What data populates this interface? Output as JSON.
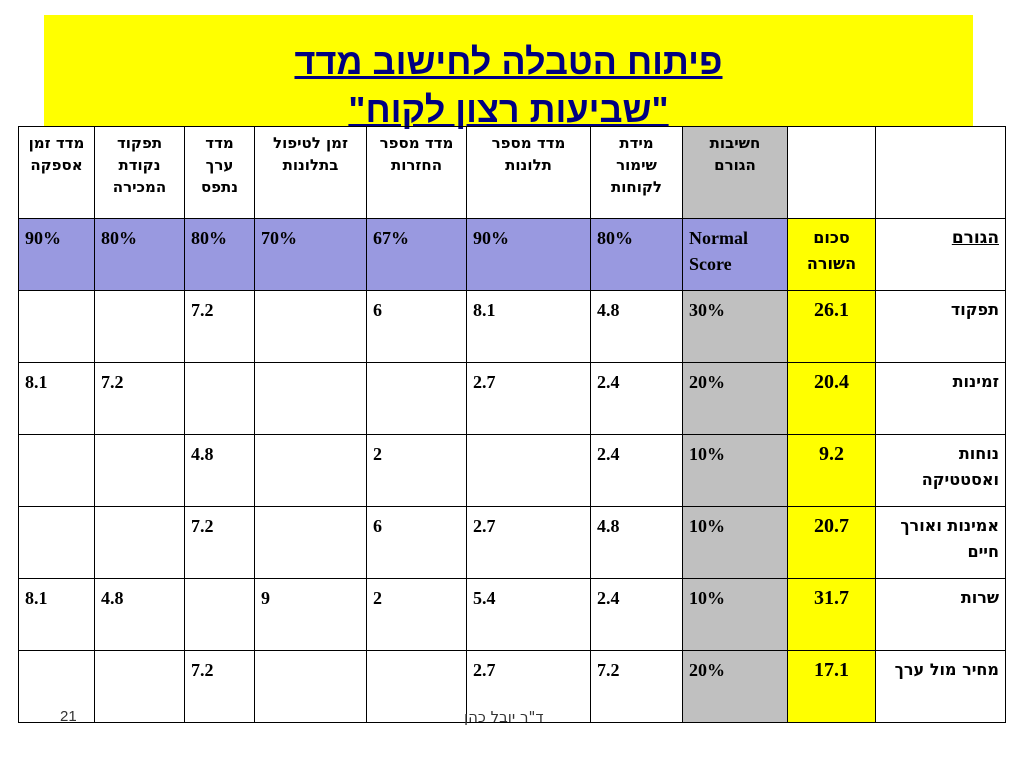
{
  "title": {
    "line1": "פיתוח הטבלה לחישוב מדד",
    "line2": "\"שביעות רצון לקוח\""
  },
  "table": {
    "headers": [
      "",
      "",
      "חשיבות הגורם",
      "מידת שימור לקוחות",
      "מדד מספר תלונות",
      "מדד מספר החזרות",
      "זמן לטיפול בתלונות",
      "מדד ערך נתפס",
      "תפקוד נקודת המכירה",
      "מדד זמן אספקה"
    ],
    "score_row": {
      "factors_label": "הגורם",
      "sum_label": "סכום השורה",
      "normal_label": "Normal Score",
      "values": [
        "80%",
        "90%",
        "67%",
        "70%",
        "80%",
        "80%",
        "90%"
      ]
    },
    "rows": [
      {
        "factor": "תפקוד",
        "sum": "26.1",
        "weight": "30%",
        "values": [
          "4.8",
          "8.1",
          "6",
          "",
          "7.2",
          "",
          ""
        ]
      },
      {
        "factor": "זמינות",
        "sum": "20.4",
        "weight": "20%",
        "values": [
          "2.4",
          "2.7",
          "",
          "",
          "",
          "7.2",
          "8.1"
        ]
      },
      {
        "factor": "נוחות ואסטטיקה",
        "sum": "9.2",
        "weight": "10%",
        "values": [
          "2.4",
          "",
          "2",
          "",
          "4.8",
          "",
          ""
        ]
      },
      {
        "factor": "אמינות ואורך חיים",
        "sum": "20.7",
        "weight": "10%",
        "values": [
          "4.8",
          "2.7",
          "6",
          "",
          "7.2",
          "",
          ""
        ]
      },
      {
        "factor": "שרות",
        "sum": "31.7",
        "weight": "10%",
        "values": [
          "2.4",
          "5.4",
          "2",
          "9",
          "",
          "4.8",
          "8.1"
        ]
      },
      {
        "factor": "מחיר מול ערך",
        "sum": "17.1",
        "weight": "20%",
        "values": [
          "7.2",
          "2.7",
          "",
          "",
          "7.2",
          "",
          ""
        ]
      }
    ]
  },
  "footer": {
    "slide_number": "21",
    "author": "ד\"ר יובל כהן"
  },
  "colors": {
    "title_bg": "#ffff00",
    "title_text": "#000080",
    "score_row_bg": "#9999e0",
    "sum_col_bg": "#ffff00",
    "weight_col_bg": "#c0c0c0"
  }
}
